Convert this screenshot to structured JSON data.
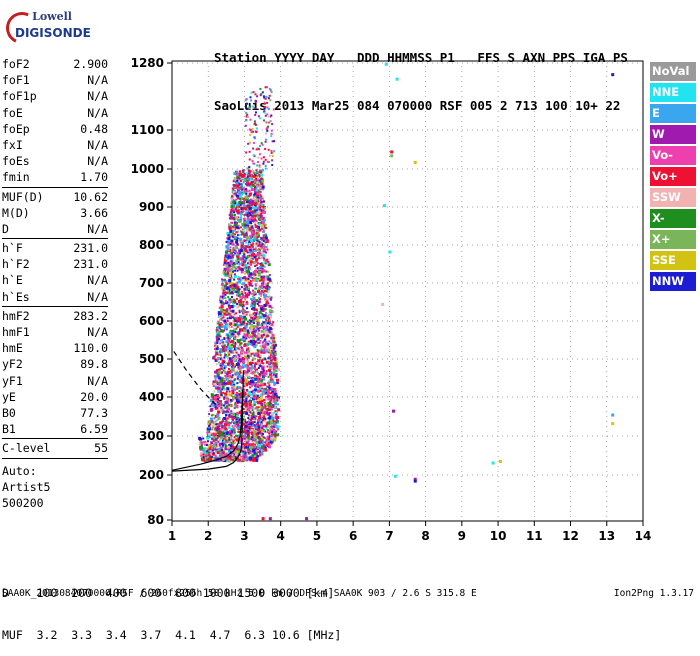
{
  "logo": {
    "top": "Lowell",
    "bottom": "DIGISONDE"
  },
  "header": {
    "line1": "Station YYYY DAY   DDD HHMMSS P1   FFS S AXN PPS IGA PS",
    "line2": "SaoLuis 2013 Mar25 084 070000 RSF 005 2 713 100 10+ 22"
  },
  "params_group1": [
    {
      "name": "foF2",
      "value": "2.900"
    },
    {
      "name": "foF1",
      "value": "N/A"
    },
    {
      "name": "foF1p",
      "value": "N/A"
    },
    {
      "name": "foE",
      "value": "N/A"
    },
    {
      "name": "foEp",
      "value": "0.48"
    },
    {
      "name": "fxI",
      "value": "N/A"
    },
    {
      "name": "foEs",
      "value": "N/A"
    },
    {
      "name": "fmin",
      "value": "1.70"
    }
  ],
  "params_group2": [
    {
      "name": "MUF(D)",
      "value": "10.62"
    },
    {
      "name": "M(D)",
      "value": "3.66"
    },
    {
      "name": "D",
      "value": "N/A"
    }
  ],
  "params_group3": [
    {
      "name": "h`F",
      "value": "231.0"
    },
    {
      "name": "h`F2",
      "value": "231.0"
    },
    {
      "name": "h`E",
      "value": "N/A"
    },
    {
      "name": "h`Es",
      "value": "N/A"
    }
  ],
  "params_group4": [
    {
      "name": "hmF2",
      "value": "283.2"
    },
    {
      "name": "hmF1",
      "value": "N/A"
    },
    {
      "name": "hmE",
      "value": "110.0"
    },
    {
      "name": "yF2",
      "value": "89.8"
    },
    {
      "name": "yF1",
      "value": "N/A"
    },
    {
      "name": "yE",
      "value": "20.0"
    },
    {
      "name": "B0",
      "value": "77.3"
    },
    {
      "name": "B1",
      "value": "6.59"
    }
  ],
  "params_group5": [
    {
      "name": "C-level",
      "value": "55"
    }
  ],
  "auto": {
    "line1": "Auto:",
    "line2": "Artist5",
    "line3": "500200"
  },
  "legend": [
    {
      "label": "NoVal",
      "color": "#9a9a9a"
    },
    {
      "label": "NNE",
      "color": "#22e3f0"
    },
    {
      "label": "E",
      "color": "#3aa6ee"
    },
    {
      "label": "W",
      "color": "#a01ab0"
    },
    {
      "label": "Vo-",
      "color": "#ee3fae"
    },
    {
      "label": "Vo+",
      "color": "#ee1133"
    },
    {
      "label": "SSW",
      "color": "#f2b2b2"
    },
    {
      "label": "X-",
      "color": "#1e8f1e"
    },
    {
      "label": "X+",
      "color": "#7bb55a"
    },
    {
      "label": "SSE",
      "color": "#d2c213"
    },
    {
      "label": "NNW",
      "color": "#1c1cd2"
    }
  ],
  "muf_table": {
    "line1": "D    100  200  400  600  800 1000 1500 3000 [km]",
    "line2": "MUF  3.2  3.3  3.4  3.7  4.1  4.7  6.3 10.6 [MHz]"
  },
  "footer": {
    "left": "SAA0K_2013084070000.RSF / 260fx256h 50 kHz 5.0 km / DPS-4 SAA0K 903 / 2.6 S 315.8 E",
    "right": "Ion2Png 1.3.17"
  },
  "chart_data": {
    "type": "scatter",
    "title": "",
    "xlabel": "",
    "ylabel": "",
    "xlim": [
      1,
      14
    ],
    "ylim": [
      80,
      1300
    ],
    "xticks": [
      1,
      2,
      3,
      4,
      5,
      6,
      7,
      8,
      9,
      10,
      11,
      12,
      13,
      14
    ],
    "yticks": [
      80,
      200,
      300,
      400,
      500,
      600,
      700,
      800,
      900,
      1000,
      1100,
      1280
    ],
    "grid": true,
    "ionogram_cloud": {
      "description_x_range_MHz": [
        1.7,
        3.9
      ],
      "height_range_km": [
        240,
        1260
      ]
    },
    "isolated_points": [
      {
        "x": 6.9,
        "y": 1278,
        "color": "#22e3f0"
      },
      {
        "x": 7.2,
        "y": 1238,
        "color": "#22e3f0"
      },
      {
        "x": 7.05,
        "y": 1045,
        "color": "#ee1133"
      },
      {
        "x": 7.05,
        "y": 1035,
        "color": "#7bb55a"
      },
      {
        "x": 7.7,
        "y": 1018,
        "color": "#d2c213"
      },
      {
        "x": 6.85,
        "y": 905,
        "color": "#22e3f0"
      },
      {
        "x": 7.0,
        "y": 783,
        "color": "#22e3f0"
      },
      {
        "x": 6.8,
        "y": 645,
        "color": "#f2b2b2"
      },
      {
        "x": 7.1,
        "y": 365,
        "color": "#a01ab0"
      },
      {
        "x": 7.15,
        "y": 198,
        "color": "#22e3f0"
      },
      {
        "x": 7.7,
        "y": 190,
        "color": "#a01ab0"
      },
      {
        "x": 7.7,
        "y": 185,
        "color": "#1c1cd2"
      },
      {
        "x": 9.85,
        "y": 232,
        "color": "#22e3f0"
      },
      {
        "x": 10.05,
        "y": 236,
        "color": "#d2c213"
      },
      {
        "x": 13.15,
        "y": 1250,
        "color": "#1c1cd2"
      },
      {
        "x": 13.15,
        "y": 355,
        "color": "#3aa6ee"
      },
      {
        "x": 13.15,
        "y": 333,
        "color": "#d2c213"
      },
      {
        "x": 4.7,
        "y": 85,
        "color": "#a01ab0"
      },
      {
        "x": 3.5,
        "y": 85,
        "color": "#ee1133"
      },
      {
        "x": 3.7,
        "y": 85,
        "color": "#a01ab0"
      }
    ],
    "profile_curve": [
      [
        1.0,
        210
      ],
      [
        2.0,
        215
      ],
      [
        2.5,
        222
      ],
      [
        2.7,
        232
      ],
      [
        2.85,
        250
      ],
      [
        2.9,
        262
      ],
      [
        2.92,
        275
      ],
      [
        2.93,
        300
      ],
      [
        2.94,
        340
      ],
      [
        2.95,
        380
      ],
      [
        2.96,
        420
      ],
      [
        2.97,
        470
      ]
    ],
    "trace_curve": [
      [
        1.0,
        212
      ],
      [
        1.8,
        228
      ],
      [
        2.2,
        238
      ],
      [
        2.5,
        248
      ],
      [
        2.7,
        262
      ],
      [
        2.82,
        280
      ],
      [
        2.88,
        300
      ],
      [
        2.91,
        330
      ],
      [
        2.93,
        370
      ],
      [
        2.95,
        420
      ]
    ],
    "dashed_curve": [
      [
        1.05,
        520
      ],
      [
        1.4,
        470
      ],
      [
        1.8,
        420
      ],
      [
        2.1,
        390
      ],
      [
        2.3,
        375
      ]
    ]
  }
}
